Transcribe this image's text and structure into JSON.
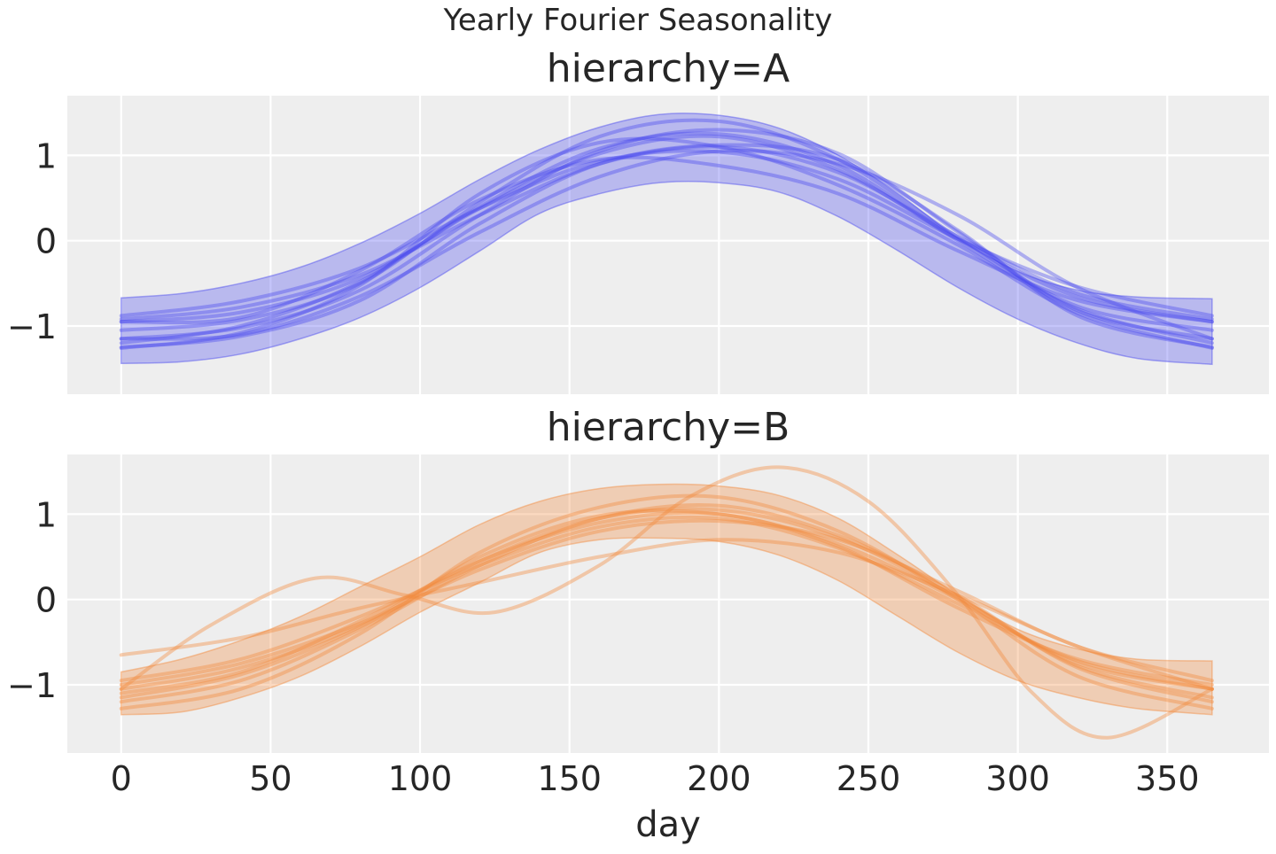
{
  "figure": {
    "title": "Yearly Fourier Seasonality"
  },
  "chart_data": [
    {
      "type": "line",
      "title": "hierarchy=A",
      "xlabel": "",
      "ylabel": "",
      "xlim": [
        -18,
        384
      ],
      "ylim": [
        -1.8,
        1.7
      ],
      "xticks": [
        0,
        50,
        100,
        150,
        200,
        250,
        300,
        350
      ],
      "xtick_labels": [
        "",
        "",
        "",
        "",
        "",
        "",
        "",
        ""
      ],
      "yticks": [
        -1,
        0,
        1
      ],
      "ytick_labels": [
        "−1",
        "0",
        "1"
      ],
      "grid": true,
      "legend": "none",
      "color": "#4a4aee",
      "band": {
        "x": [
          0,
          20,
          40,
          60,
          80,
          100,
          120,
          140,
          160,
          180,
          200,
          220,
          240,
          260,
          280,
          300,
          320,
          340,
          365
        ],
        "upper": [
          -0.67,
          -0.62,
          -0.5,
          -0.31,
          -0.03,
          0.32,
          0.72,
          1.07,
          1.33,
          1.48,
          1.47,
          1.32,
          1.0,
          0.55,
          0.03,
          -0.36,
          -0.58,
          -0.66,
          -0.68
        ],
        "lower": [
          -1.44,
          -1.42,
          -1.33,
          -1.15,
          -0.9,
          -0.55,
          -0.12,
          0.32,
          0.55,
          0.68,
          0.68,
          0.57,
          0.28,
          -0.12,
          -0.55,
          -0.92,
          -1.2,
          -1.38,
          -1.45
        ]
      },
      "series": [
        {
          "x": [
            0,
            40,
            80,
            120,
            160,
            200,
            240,
            280,
            320,
            365
          ],
          "values": [
            -0.88,
            -0.71,
            -0.32,
            0.38,
            0.93,
            1.04,
            0.72,
            0.02,
            -0.54,
            -0.88
          ]
        },
        {
          "x": [
            0,
            40,
            80,
            120,
            160,
            200,
            240,
            280,
            320,
            365
          ],
          "values": [
            -0.95,
            -0.84,
            -0.44,
            0.38,
            1.02,
            1.22,
            0.83,
            0.02,
            -0.66,
            -0.95
          ]
        },
        {
          "x": [
            0,
            40,
            80,
            120,
            160,
            200,
            240,
            280,
            320,
            365
          ],
          "values": [
            -1.05,
            -0.93,
            -0.5,
            0.45,
            1.22,
            1.4,
            0.95,
            0.04,
            -0.77,
            -1.05
          ]
        },
        {
          "x": [
            0,
            40,
            80,
            120,
            160,
            200,
            240,
            280,
            320,
            365
          ],
          "values": [
            -1.15,
            -1.02,
            -0.58,
            0.3,
            1.05,
            1.3,
            1.02,
            0.1,
            -0.82,
            -1.15
          ]
        },
        {
          "x": [
            0,
            40,
            80,
            120,
            160,
            200,
            240,
            280,
            320,
            365
          ],
          "values": [
            -1.25,
            -1.12,
            -0.7,
            0.2,
            0.9,
            1.12,
            0.95,
            0.12,
            -0.88,
            -1.25
          ]
        },
        {
          "x": [
            0,
            40,
            80,
            120,
            160,
            200,
            240,
            280,
            320,
            365
          ],
          "values": [
            -1.26,
            -1.08,
            -0.52,
            0.55,
            1.15,
            1.1,
            0.65,
            -0.05,
            -0.85,
            -1.26
          ]
        },
        {
          "x": [
            0,
            40,
            80,
            120,
            160,
            200,
            240,
            280,
            320,
            365
          ],
          "values": [
            -0.95,
            -0.9,
            -0.35,
            0.48,
            0.95,
            0.88,
            0.55,
            -0.12,
            -0.7,
            -0.95
          ]
        },
        {
          "x": [
            0,
            40,
            80,
            120,
            160,
            200,
            240,
            280,
            320,
            365
          ],
          "values": [
            -1.15,
            -1.1,
            -0.65,
            0.1,
            0.75,
            1.05,
            0.9,
            0.3,
            -0.55,
            -1.15
          ]
        },
        {
          "x": [
            0,
            40,
            80,
            120,
            160,
            200,
            240,
            280,
            320,
            365
          ],
          "values": [
            -0.92,
            -0.78,
            -0.4,
            0.3,
            0.9,
            1.1,
            0.8,
            0.05,
            -0.62,
            -0.92
          ]
        },
        {
          "x": [
            0,
            40,
            80,
            120,
            160,
            200,
            240,
            280,
            320,
            365
          ],
          "values": [
            -1.2,
            -1.0,
            -0.48,
            0.4,
            1.08,
            1.25,
            0.88,
            0.0,
            -0.8,
            -1.2
          ]
        }
      ]
    },
    {
      "type": "line",
      "title": "hierarchy=B",
      "xlabel": "day",
      "ylabel": "",
      "xlim": [
        -18,
        384
      ],
      "ylim": [
        -1.8,
        1.7
      ],
      "xticks": [
        0,
        50,
        100,
        150,
        200,
        250,
        300,
        350
      ],
      "xtick_labels": [
        "0",
        "50",
        "100",
        "150",
        "200",
        "250",
        "300",
        "350"
      ],
      "yticks": [
        -1,
        0,
        1
      ],
      "ytick_labels": [
        "−1",
        "0",
        "1"
      ],
      "grid": true,
      "legend": "none",
      "color": "#f28a3c",
      "band": {
        "x": [
          0,
          20,
          40,
          60,
          80,
          100,
          120,
          140,
          160,
          180,
          200,
          220,
          240,
          260,
          280,
          300,
          320,
          340,
          365
        ],
        "upper": [
          -0.85,
          -0.7,
          -0.48,
          -0.2,
          0.15,
          0.5,
          0.88,
          1.15,
          1.3,
          1.35,
          1.33,
          1.22,
          0.95,
          0.52,
          0.05,
          -0.35,
          -0.58,
          -0.7,
          -0.72
        ],
        "lower": [
          -1.35,
          -1.32,
          -1.15,
          -0.9,
          -0.55,
          -0.15,
          0.2,
          0.55,
          0.7,
          0.72,
          0.68,
          0.52,
          0.22,
          -0.2,
          -0.62,
          -0.95,
          -1.15,
          -1.28,
          -1.35
        ]
      },
      "series": [
        {
          "x": [
            0,
            30,
            65,
            95,
            125,
            160,
            190,
            220,
            250,
            280,
            305,
            330,
            365
          ],
          "values": [
            -1.05,
            -0.3,
            0.25,
            0.05,
            -0.15,
            0.4,
            1.2,
            1.55,
            1.15,
            0.05,
            -1.1,
            -1.62,
            -1.05
          ]
        },
        {
          "x": [
            0,
            40,
            80,
            120,
            160,
            200,
            240,
            280,
            320,
            365
          ],
          "values": [
            -0.65,
            -0.45,
            -0.1,
            0.2,
            0.5,
            0.7,
            0.55,
            0.05,
            -0.55,
            -1.05
          ]
        },
        {
          "x": [
            0,
            40,
            80,
            120,
            160,
            200,
            240,
            280,
            320,
            365
          ],
          "values": [
            -0.95,
            -0.7,
            -0.2,
            0.4,
            0.85,
            0.95,
            0.6,
            -0.05,
            -0.72,
            -1.05
          ]
        },
        {
          "x": [
            0,
            40,
            80,
            120,
            160,
            200,
            240,
            280,
            320,
            365
          ],
          "values": [
            -1.05,
            -0.8,
            -0.3,
            0.5,
            0.98,
            1.0,
            0.65,
            0.0,
            -0.75,
            -1.05
          ]
        },
        {
          "x": [
            0,
            40,
            80,
            120,
            160,
            200,
            240,
            280,
            320,
            365
          ],
          "values": [
            -1.2,
            -0.95,
            -0.35,
            0.4,
            0.95,
            1.1,
            0.75,
            0.05,
            -0.8,
            -1.2
          ]
        },
        {
          "x": [
            0,
            40,
            80,
            120,
            160,
            200,
            240,
            280,
            320,
            365
          ],
          "values": [
            -1.28,
            -1.05,
            -0.4,
            0.55,
            1.08,
            1.2,
            0.8,
            0.0,
            -0.9,
            -1.28
          ]
        },
        {
          "x": [
            0,
            40,
            80,
            120,
            160,
            200,
            240,
            280,
            320,
            365
          ],
          "values": [
            -1.1,
            -0.85,
            -0.25,
            0.45,
            0.9,
            1.0,
            0.62,
            -0.1,
            -0.7,
            -1.0
          ]
        },
        {
          "x": [
            0,
            40,
            80,
            120,
            160,
            200,
            240,
            280,
            320,
            365
          ],
          "values": [
            -1.0,
            -0.75,
            -0.28,
            0.35,
            0.8,
            0.92,
            0.7,
            0.1,
            -0.55,
            -0.95
          ]
        },
        {
          "x": [
            0,
            40,
            80,
            120,
            160,
            200,
            240,
            280,
            320,
            365
          ],
          "values": [
            -1.15,
            -0.88,
            -0.32,
            0.45,
            0.95,
            1.05,
            0.72,
            0.02,
            -0.78,
            -1.15
          ]
        }
      ]
    }
  ]
}
